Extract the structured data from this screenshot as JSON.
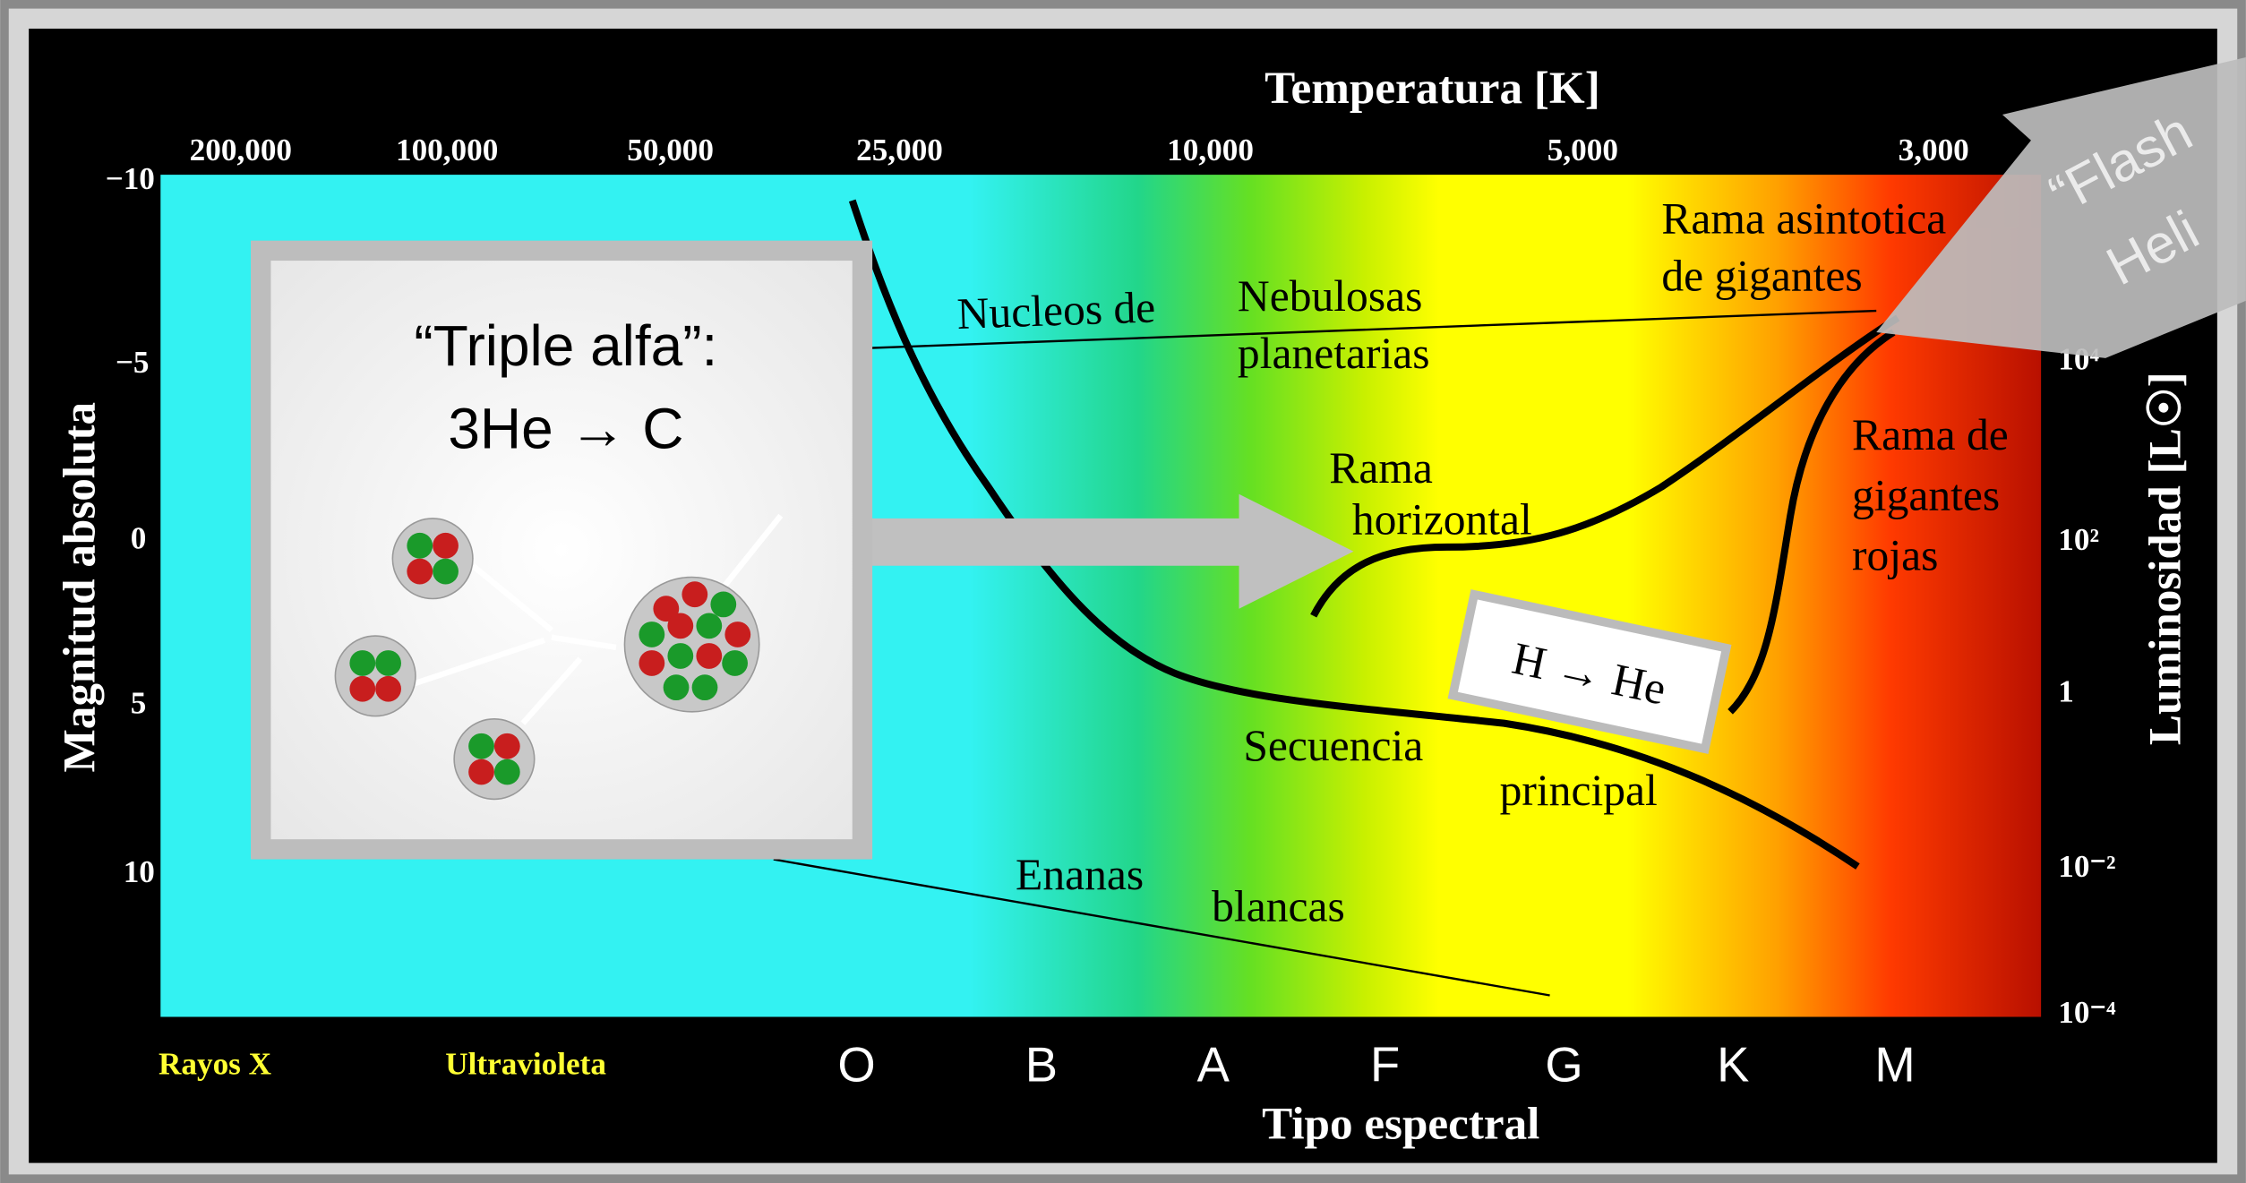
{
  "top_axis": {
    "title": "Temperatura [K]",
    "ticks": [
      "200,000",
      "100,000",
      "50,000",
      "25,000",
      "10,000",
      "5,000",
      "3,000"
    ]
  },
  "left_axis": {
    "title": "Magnitud absoluta",
    "ticks": [
      "−10",
      "−5",
      "0",
      "5",
      "10"
    ]
  },
  "right_axis": {
    "title": "Luminosidad [L☉]",
    "ticks": [
      "10⁴",
      "10²",
      "1",
      "10⁻²",
      "10⁻⁴"
    ]
  },
  "bottom_axis": {
    "title": "Tipo espectral",
    "bands": [
      "Rayos X",
      "Ultravioleta"
    ],
    "classes": [
      "O",
      "B",
      "A",
      "F",
      "G",
      "K",
      "M"
    ]
  },
  "regions": {
    "planetary_nebulae": {
      "lines": [
        "Nucleos  de",
        "Nebulosas",
        "planetarias"
      ]
    },
    "agb": {
      "lines": [
        "Rama asintotica",
        "de gigantes"
      ]
    },
    "horizontal_branch": {
      "lines": [
        "Rama",
        "horizontal"
      ]
    },
    "red_giants": {
      "lines": [
        "Rama de",
        "gigantes",
        "rojas"
      ]
    },
    "main_sequence": {
      "lines": [
        "Secuencia",
        "principal"
      ]
    },
    "white_dwarfs": {
      "lines": [
        "Enanas",
        "blancas"
      ]
    }
  },
  "callouts": {
    "triple_alpha": {
      "lines": [
        "“Triple alfa”:",
        "3He → C"
      ]
    },
    "h_to_he": "H → He",
    "flash": {
      "lines": [
        "“Flash",
        "Heli"
      ]
    }
  }
}
